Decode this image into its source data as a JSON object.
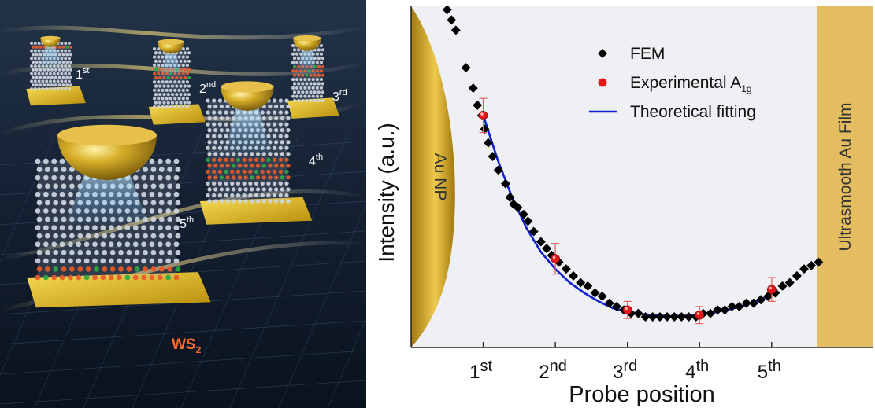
{
  "illustration": {
    "order_labels": [
      {
        "num": "1",
        "sup": "st"
      },
      {
        "num": "2",
        "sup": "nd"
      },
      {
        "num": "3",
        "sup": "rd"
      },
      {
        "num": "4",
        "sup": "th"
      },
      {
        "num": "5",
        "sup": "th"
      }
    ],
    "material": {
      "base": "WS",
      "sub": "2"
    },
    "colors": {
      "bg_dark": "#101a28",
      "gold": "#c99a12",
      "gold_light": "#f2d15a",
      "atom": "#cfd6e0",
      "sulfur": "#e85a2a",
      "tungsten": "#2aa845",
      "glow": "#7ad8ff",
      "label": "#ffffff",
      "material_label": "#ff6a2a"
    }
  },
  "chart_data": {
    "type": "scatter",
    "xlabel": "Probe position",
    "ylabel": "Intensity (a.u.)",
    "xlim": [
      0,
      6.4
    ],
    "ylim": [
      0,
      1
    ],
    "x_ticks": [
      {
        "value": 1,
        "num": "1",
        "sup": "st"
      },
      {
        "value": 2,
        "num": "2",
        "sup": "nd"
      },
      {
        "value": 3,
        "num": "3",
        "sup": "rd"
      },
      {
        "value": 4,
        "num": "4",
        "sup": "th"
      },
      {
        "value": 5,
        "num": "5",
        "sup": "th"
      }
    ],
    "regions": {
      "left": {
        "label": "Au NP",
        "x_end": 0.42
      },
      "right": {
        "label": "Ultrasmooth Au Film",
        "x_start": 5.53
      }
    },
    "legend": {
      "position": "top-right",
      "entries": [
        {
          "key": "fem",
          "label": "FEM",
          "sub": ""
        },
        {
          "key": "exp",
          "label": "Experimental A",
          "sub": "1g"
        },
        {
          "key": "fit",
          "label": "Theoretical fitting",
          "sub": ""
        }
      ]
    },
    "series": [
      {
        "key": "fem",
        "marker": "diamond",
        "points": [
          [
            0.5,
            0.99
          ],
          [
            0.56,
            0.96
          ],
          [
            0.62,
            0.93
          ],
          [
            0.76,
            0.82
          ],
          [
            0.86,
            0.76
          ],
          [
            0.92,
            0.71
          ],
          [
            0.98,
            0.68
          ],
          [
            1.02,
            0.64
          ],
          [
            1.07,
            0.6
          ],
          [
            1.13,
            0.56
          ],
          [
            1.21,
            0.52
          ],
          [
            1.31,
            0.48
          ],
          [
            1.37,
            0.44
          ],
          [
            1.42,
            0.42
          ],
          [
            1.48,
            0.41
          ],
          [
            1.56,
            0.39
          ],
          [
            1.62,
            0.37
          ],
          [
            1.7,
            0.34
          ],
          [
            1.8,
            0.31
          ],
          [
            1.88,
            0.29
          ],
          [
            1.95,
            0.27
          ],
          [
            2.05,
            0.25
          ],
          [
            2.15,
            0.23
          ],
          [
            2.25,
            0.21
          ],
          [
            2.35,
            0.19
          ],
          [
            2.45,
            0.18
          ],
          [
            2.55,
            0.16
          ],
          [
            2.65,
            0.15
          ],
          [
            2.75,
            0.13
          ],
          [
            2.85,
            0.12
          ],
          [
            2.95,
            0.11
          ],
          [
            3.05,
            0.1
          ],
          [
            3.15,
            0.1
          ],
          [
            3.25,
            0.09
          ],
          [
            3.35,
            0.09
          ],
          [
            3.45,
            0.09
          ],
          [
            3.55,
            0.09
          ],
          [
            3.65,
            0.09
          ],
          [
            3.75,
            0.09
          ],
          [
            3.85,
            0.09
          ],
          [
            3.95,
            0.09
          ],
          [
            4.05,
            0.1
          ],
          [
            4.15,
            0.1
          ],
          [
            4.25,
            0.11
          ],
          [
            4.35,
            0.11
          ],
          [
            4.45,
            0.12
          ],
          [
            4.55,
            0.12
          ],
          [
            4.65,
            0.13
          ],
          [
            4.75,
            0.13
          ],
          [
            4.85,
            0.14
          ],
          [
            4.95,
            0.15
          ],
          [
            5.05,
            0.16
          ],
          [
            5.15,
            0.18
          ],
          [
            5.25,
            0.19
          ],
          [
            5.35,
            0.21
          ],
          [
            5.45,
            0.23
          ],
          [
            5.55,
            0.24
          ],
          [
            5.65,
            0.25
          ]
        ]
      },
      {
        "key": "exp",
        "marker": "circle",
        "points": [
          [
            1.0,
            0.68
          ],
          [
            2.0,
            0.26
          ],
          [
            3.0,
            0.11
          ],
          [
            4.0,
            0.095
          ],
          [
            5.0,
            0.17
          ]
        ],
        "errors": [
          0.05,
          0.045,
          0.025,
          0.025,
          0.035
        ]
      },
      {
        "key": "fit",
        "marker": "line",
        "points": [
          [
            1.0,
            0.68
          ],
          [
            1.2,
            0.55
          ],
          [
            1.4,
            0.44
          ],
          [
            1.6,
            0.35
          ],
          [
            1.8,
            0.28
          ],
          [
            2.0,
            0.23
          ],
          [
            2.2,
            0.19
          ],
          [
            2.4,
            0.16
          ],
          [
            2.6,
            0.135
          ],
          [
            2.8,
            0.115
          ],
          [
            3.0,
            0.105
          ],
          [
            3.2,
            0.098
          ],
          [
            3.4,
            0.094
          ],
          [
            3.6,
            0.092
          ],
          [
            3.8,
            0.093
          ],
          [
            4.0,
            0.097
          ],
          [
            4.2,
            0.103
          ],
          [
            4.4,
            0.111
          ],
          [
            4.6,
            0.122
          ],
          [
            4.8,
            0.136
          ],
          [
            5.0,
            0.155
          ]
        ]
      }
    ],
    "colors": {
      "fem": "#000000",
      "exp": "#e01818",
      "errorbar": "#e06060",
      "fit": "#1020d0",
      "panel": "#eef0f3",
      "region": "#e3bd5f",
      "np_light": "#f3cf52",
      "np_dark": "#9a7410",
      "region_text": "#333333"
    }
  }
}
